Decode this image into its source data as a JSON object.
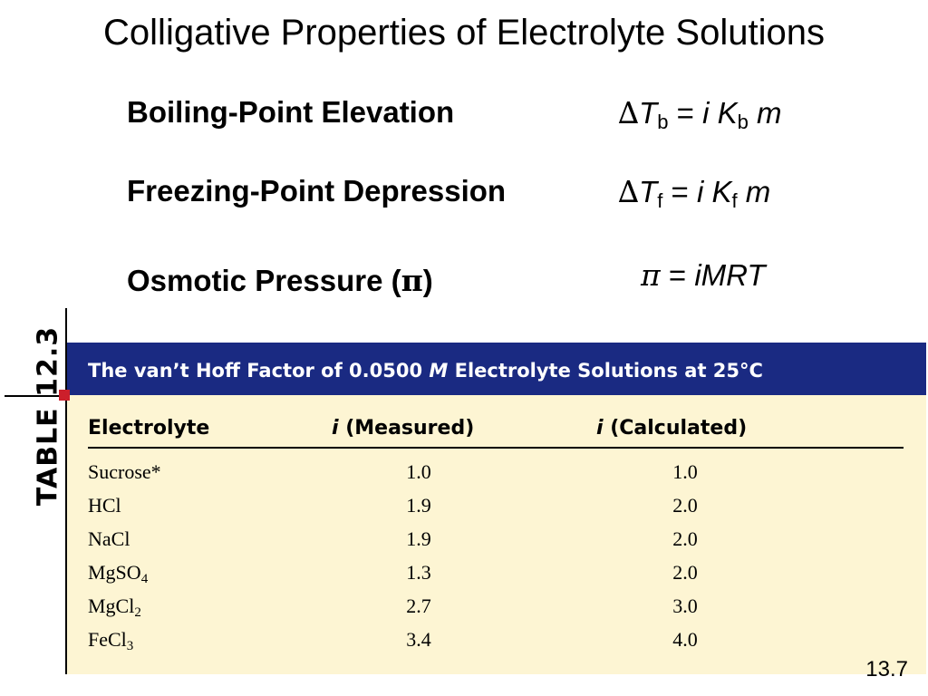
{
  "slide": {
    "title": "Colligative Properties of Electrolyte Solutions",
    "slide_number": "13.7"
  },
  "properties": [
    {
      "label": "Boiling-Point Elevation",
      "formula": {
        "delta": "∆",
        "T": "T",
        "sub1": "b",
        "eq": " = ",
        "i": "i",
        "K": "K",
        "sub2": "b",
        "m": "m"
      }
    },
    {
      "label": "Freezing-Point Depression",
      "formula": {
        "delta": "∆",
        "T": "T",
        "sub1": "f",
        "eq": " = ",
        "i": "i",
        "K": "K",
        "sub2": "f",
        "m": "m"
      }
    },
    {
      "label_prefix": "Osmotic Pressure (",
      "label_symbol": "π",
      "label_suffix": ")",
      "formula": {
        "pi": "π",
        "eq": " = ",
        "rest": "iMRT"
      }
    }
  ],
  "table": {
    "side_label": "TABLE 12.3",
    "caption_prefix": "The van’t Hoff Factor of 0.0500 ",
    "caption_M": "M",
    "caption_suffix": " Electrolyte Solutions at 25°C",
    "columns": {
      "electrolyte": "Electrolyte",
      "measured_i": "i",
      "measured_rest": " (Measured)",
      "calculated_i": "i",
      "calculated_rest": " (Calculated)"
    },
    "rows": [
      {
        "name": "Sucrose*",
        "sub": "",
        "measured": "1.0",
        "calculated": "1.0"
      },
      {
        "name": "HCl",
        "sub": "",
        "measured": "1.9",
        "calculated": "2.0"
      },
      {
        "name": "NaCl",
        "sub": "",
        "measured": "1.9",
        "calculated": "2.0"
      },
      {
        "name": "MgSO",
        "sub": "4",
        "measured": "1.3",
        "calculated": "2.0"
      },
      {
        "name": "MgCl",
        "sub": "2",
        "measured": "2.7",
        "calculated": "3.0"
      },
      {
        "name": "FeCl",
        "sub": "3",
        "measured": "3.4",
        "calculated": "4.0"
      }
    ]
  },
  "colors": {
    "header_bar": "#1a2a82",
    "table_background": "#fdf5d3",
    "accent_square": "#cc1f2b"
  }
}
